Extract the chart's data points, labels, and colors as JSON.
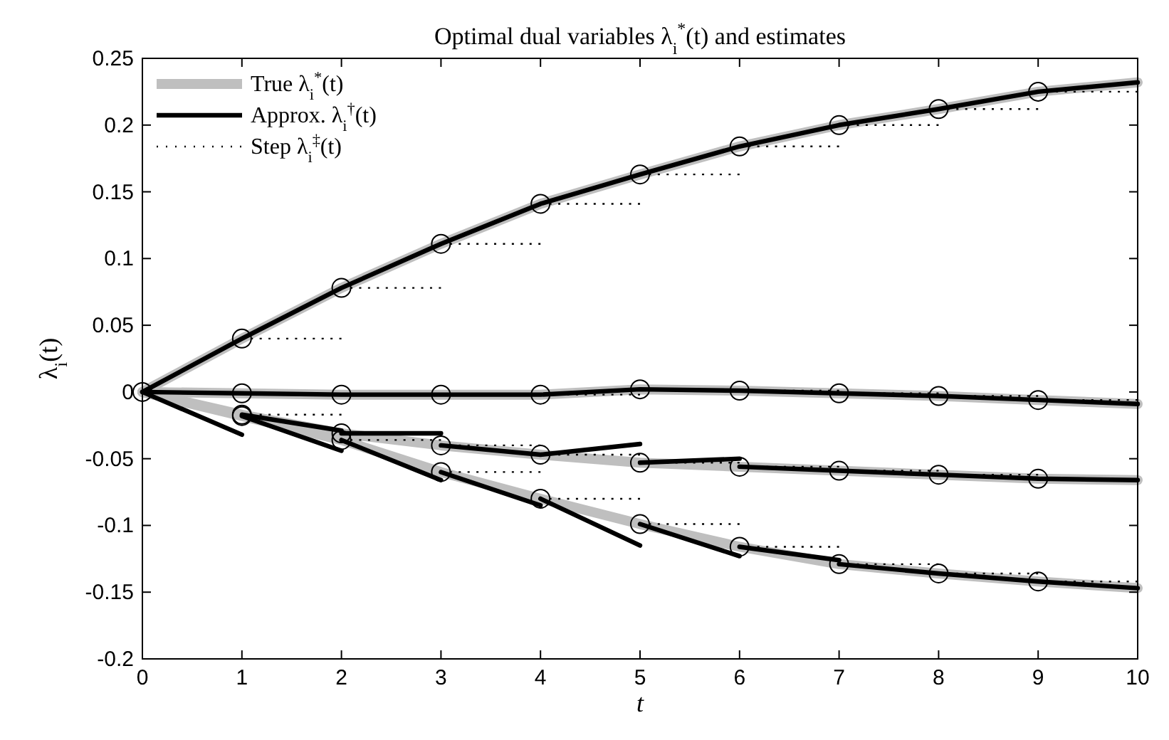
{
  "chart_data": {
    "type": "line",
    "title": "Optimal dual variables λ$_{i}$$^{*}$(t) and estimates",
    "xlabel": "t",
    "ylabel": "λ$_{i}$(t)",
    "xlim": [
      0,
      10
    ],
    "ylim": [
      -0.2,
      0.25
    ],
    "xticks": [
      0,
      1,
      2,
      3,
      4,
      5,
      6,
      7,
      8,
      9,
      10
    ],
    "yticks": [
      -0.2,
      -0.15,
      -0.1,
      -0.05,
      0,
      0.05,
      0.1,
      0.15,
      0.2,
      0.25
    ],
    "grid": false,
    "legend": "top left",
    "series": [
      {
        "name": "True λ$_{i}$$^{*}$(t)",
        "color": "#bfbfbf",
        "line_style": "solid",
        "x": [
          0,
          1,
          2,
          3,
          4,
          5,
          6,
          7,
          8,
          9,
          10
        ],
        "values": [
          0,
          0.04,
          0.078,
          0.111,
          0.141,
          0.163,
          0.184,
          0.2,
          0.212,
          0.225,
          0.232
        ]
      },
      {
        "color": "#bfbfbf",
        "line_style": "solid",
        "x": [
          0,
          1,
          2,
          3,
          4,
          5,
          6,
          7,
          8,
          9,
          10
        ],
        "values": [
          0,
          -0.001,
          -0.002,
          -0.002,
          -0.002,
          0.002,
          0.001,
          -0.001,
          -0.003,
          -0.006,
          -0.009
        ]
      },
      {
        "color": "#bfbfbf",
        "line_style": "solid",
        "x": [
          0,
          1,
          2,
          3,
          4,
          5,
          6,
          7,
          8,
          9,
          10
        ],
        "values": [
          0,
          -0.017,
          -0.031,
          -0.04,
          -0.047,
          -0.053,
          -0.056,
          -0.059,
          -0.062,
          -0.065,
          -0.066
        ]
      },
      {
        "color": "#bfbfbf",
        "line_style": "solid",
        "x": [
          0,
          1,
          2,
          3,
          4,
          5,
          6,
          7,
          8,
          9,
          10
        ],
        "values": [
          0,
          -0.018,
          -0.036,
          -0.06,
          -0.08,
          -0.099,
          -0.116,
          -0.129,
          -0.136,
          -0.142,
          -0.147
        ]
      },
      {
        "name": "Approx. λ$_{i}$$^{†}$(t)",
        "color": "#000000",
        "line_style": "solid",
        "x": [
          0,
          1,
          2,
          3,
          4,
          5,
          6,
          7,
          8,
          9,
          10
        ],
        "values": [
          0,
          0.04,
          0.078,
          0.111,
          0.141,
          0.163,
          0.184,
          0.2,
          0.212,
          0.225,
          0.232
        ]
      },
      {
        "color": "#000000",
        "line_style": "solid",
        "x": [
          0,
          1,
          2,
          3,
          4,
          5,
          6,
          7,
          8,
          9,
          10
        ],
        "values": [
          0,
          -0.001,
          -0.002,
          -0.002,
          -0.002,
          0.002,
          0.001,
          -0.001,
          -0.003,
          -0.006,
          -0.009
        ]
      },
      {
        "color": "#000000",
        "line_style": "solid",
        "x": [
          1,
          2
        ],
        "values": [
          -0.017,
          -0.029
        ]
      },
      {
        "color": "#000000",
        "line_style": "solid",
        "x": [
          2,
          3
        ],
        "values": [
          -0.031,
          -0.031
        ]
      },
      {
        "color": "#000000",
        "line_style": "solid",
        "x": [
          3,
          4,
          5
        ],
        "values": [
          -0.04,
          -0.047,
          -0.039
        ]
      },
      {
        "color": "#000000",
        "line_style": "solid",
        "x": [
          5,
          6
        ],
        "values": [
          -0.053,
          -0.05
        ]
      },
      {
        "color": "#000000",
        "line_style": "solid",
        "x": [
          6,
          7,
          8,
          9,
          10
        ],
        "values": [
          -0.056,
          -0.059,
          -0.062,
          -0.065,
          -0.066
        ]
      },
      {
        "color": "#000000",
        "line_style": "solid",
        "x": [
          0,
          1
        ],
        "values": [
          0,
          -0.032
        ]
      },
      {
        "color": "#000000",
        "line_style": "solid",
        "x": [
          1,
          2
        ],
        "values": [
          -0.018,
          -0.044
        ]
      },
      {
        "color": "#000000",
        "line_style": "solid",
        "x": [
          2,
          3
        ],
        "values": [
          -0.036,
          -0.066
        ]
      },
      {
        "color": "#000000",
        "line_style": "solid",
        "x": [
          3,
          4
        ],
        "values": [
          -0.06,
          -0.085
        ]
      },
      {
        "color": "#000000",
        "line_style": "solid",
        "x": [
          4,
          5
        ],
        "values": [
          -0.08,
          -0.115
        ]
      },
      {
        "color": "#000000",
        "line_style": "solid",
        "x": [
          5,
          6
        ],
        "values": [
          -0.099,
          -0.123
        ]
      },
      {
        "color": "#000000",
        "line_style": "solid",
        "x": [
          6,
          7
        ],
        "values": [
          -0.116,
          -0.126
        ]
      },
      {
        "color": "#000000",
        "line_style": "solid",
        "x": [
          7,
          8,
          9,
          10
        ],
        "values": [
          -0.129,
          -0.136,
          -0.142,
          -0.147
        ]
      },
      {
        "type": "scatter",
        "color": "#000000",
        "marker": "circle",
        "x": [
          0,
          1,
          2,
          3,
          4,
          5,
          6,
          7,
          8,
          9,
          1,
          2,
          3,
          4,
          5,
          6,
          7,
          8,
          9,
          1,
          2,
          3,
          4,
          5,
          6,
          7,
          8,
          9,
          1,
          2,
          3,
          4,
          5,
          6,
          7,
          8,
          9
        ],
        "values": [
          0,
          0.04,
          0.078,
          0.111,
          0.141,
          0.163,
          0.184,
          0.2,
          0.212,
          0.225,
          -0.001,
          -0.002,
          -0.002,
          -0.002,
          0.002,
          0.001,
          -0.001,
          -0.003,
          -0.006,
          -0.017,
          -0.031,
          -0.04,
          -0.047,
          -0.053,
          -0.056,
          -0.059,
          -0.062,
          -0.065,
          -0.018,
          -0.036,
          -0.06,
          -0.08,
          -0.099,
          -0.116,
          -0.129,
          -0.136,
          -0.142
        ]
      },
      {
        "name": "Step λ$_{i}$$^{‡}$(t)",
        "color": "#000000",
        "line_style": "dotted",
        "x": [
          1,
          2
        ],
        "values": [
          0.04,
          0.04
        ]
      },
      {
        "color": "#000000",
        "line_style": "dotted",
        "x": [
          2,
          3
        ],
        "values": [
          0.078,
          0.078
        ]
      },
      {
        "color": "#000000",
        "line_style": "dotted",
        "x": [
          3,
          4
        ],
        "values": [
          0.111,
          0.111
        ]
      },
      {
        "color": "#000000",
        "line_style": "dotted",
        "x": [
          4,
          5
        ],
        "values": [
          0.141,
          0.141
        ]
      },
      {
        "color": "#000000",
        "line_style": "dotted",
        "x": [
          5,
          6
        ],
        "values": [
          0.163,
          0.163
        ]
      },
      {
        "color": "#000000",
        "line_style": "dotted",
        "x": [
          6,
          7
        ],
        "values": [
          0.184,
          0.184
        ]
      },
      {
        "color": "#000000",
        "line_style": "dotted",
        "x": [
          7,
          8
        ],
        "values": [
          0.2,
          0.2
        ]
      },
      {
        "color": "#000000",
        "line_style": "dotted",
        "x": [
          8,
          9
        ],
        "values": [
          0.212,
          0.212
        ]
      },
      {
        "color": "#000000",
        "line_style": "dotted",
        "x": [
          9,
          10
        ],
        "values": [
          0.225,
          0.225
        ]
      },
      {
        "color": "#000000",
        "line_style": "dotted",
        "x": [
          4,
          5
        ],
        "values": [
          -0.002,
          -0.002
        ]
      },
      {
        "color": "#000000",
        "line_style": "dotted",
        "x": [
          6,
          7
        ],
        "values": [
          0.001,
          0.001
        ]
      },
      {
        "color": "#000000",
        "line_style": "dotted",
        "x": [
          7,
          8
        ],
        "values": [
          -0.001,
          -0.001
        ]
      },
      {
        "color": "#000000",
        "line_style": "dotted",
        "x": [
          8,
          9
        ],
        "values": [
          -0.003,
          -0.003
        ]
      },
      {
        "color": "#000000",
        "line_style": "dotted",
        "x": [
          9,
          10
        ],
        "values": [
          -0.006,
          -0.006
        ]
      },
      {
        "color": "#000000",
        "line_style": "dotted",
        "x": [
          1,
          2
        ],
        "values": [
          -0.017,
          -0.017
        ]
      },
      {
        "color": "#000000",
        "line_style": "dotted",
        "x": [
          3,
          4
        ],
        "values": [
          -0.04,
          -0.04
        ]
      },
      {
        "color": "#000000",
        "line_style": "dotted",
        "x": [
          4,
          5
        ],
        "values": [
          -0.047,
          -0.047
        ]
      },
      {
        "color": "#000000",
        "line_style": "dotted",
        "x": [
          5,
          6
        ],
        "values": [
          -0.053,
          -0.053
        ]
      },
      {
        "color": "#000000",
        "line_style": "dotted",
        "x": [
          6,
          7
        ],
        "values": [
          -0.056,
          -0.056
        ]
      },
      {
        "color": "#000000",
        "line_style": "dotted",
        "x": [
          7,
          8
        ],
        "values": [
          -0.059,
          -0.059
        ]
      },
      {
        "color": "#000000",
        "line_style": "dotted",
        "x": [
          8,
          9
        ],
        "values": [
          -0.062,
          -0.062
        ]
      },
      {
        "color": "#000000",
        "line_style": "dotted",
        "x": [
          2,
          3
        ],
        "values": [
          -0.036,
          -0.036
        ]
      },
      {
        "color": "#000000",
        "line_style": "dotted",
        "x": [
          3,
          4
        ],
        "values": [
          -0.06,
          -0.06
        ]
      },
      {
        "color": "#000000",
        "line_style": "dotted",
        "x": [
          4,
          5
        ],
        "values": [
          -0.08,
          -0.08
        ]
      },
      {
        "color": "#000000",
        "line_style": "dotted",
        "x": [
          5,
          6
        ],
        "values": [
          -0.099,
          -0.099
        ]
      },
      {
        "color": "#000000",
        "line_style": "dotted",
        "x": [
          6,
          7
        ],
        "values": [
          -0.116,
          -0.116
        ]
      },
      {
        "color": "#000000",
        "line_style": "dotted",
        "x": [
          7,
          8
        ],
        "values": [
          -0.129,
          -0.129
        ]
      },
      {
        "color": "#000000",
        "line_style": "dotted",
        "x": [
          8,
          9
        ],
        "values": [
          -0.136,
          -0.136
        ]
      },
      {
        "color": "#000000",
        "line_style": "dotted",
        "x": [
          9,
          10
        ],
        "values": [
          -0.142,
          -0.142
        ]
      }
    ]
  }
}
